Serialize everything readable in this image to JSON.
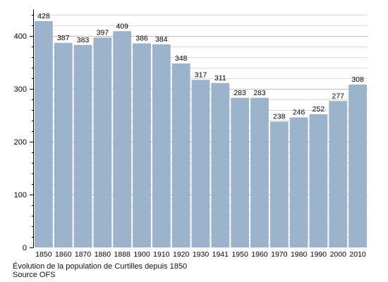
{
  "chart_data": {
    "type": "bar",
    "categories": [
      "1850",
      "1860",
      "1870",
      "1880",
      "1888",
      "1900",
      "1910",
      "1920",
      "1930",
      "1941",
      "1950",
      "1960",
      "1970",
      "1980",
      "1990",
      "2000",
      "2010"
    ],
    "values": [
      428,
      387,
      383,
      397,
      409,
      386,
      384,
      348,
      317,
      311,
      283,
      283,
      238,
      246,
      252,
      277,
      308
    ],
    "data_labels": [
      "428",
      "387",
      "383",
      "397",
      "409",
      "386",
      "384",
      "348",
      "317",
      "311",
      "283",
      "283",
      "238",
      "246",
      "252",
      "277",
      "308"
    ],
    "y_ticks": [
      0,
      100,
      200,
      300,
      400
    ],
    "y_tick_labels": [
      "0",
      "100",
      "200",
      "300",
      "400"
    ],
    "ylim": [
      0,
      450
    ],
    "grid": true,
    "bar_color": "#9db3cc",
    "grid_color": "#dcdcdc",
    "highlight_grid_color": "#bfbfbf",
    "xlabel": "",
    "ylabel": ""
  },
  "caption": {
    "title": "Évolution de la population de Curtilles depuis 1850",
    "source": "Source OFS"
  }
}
